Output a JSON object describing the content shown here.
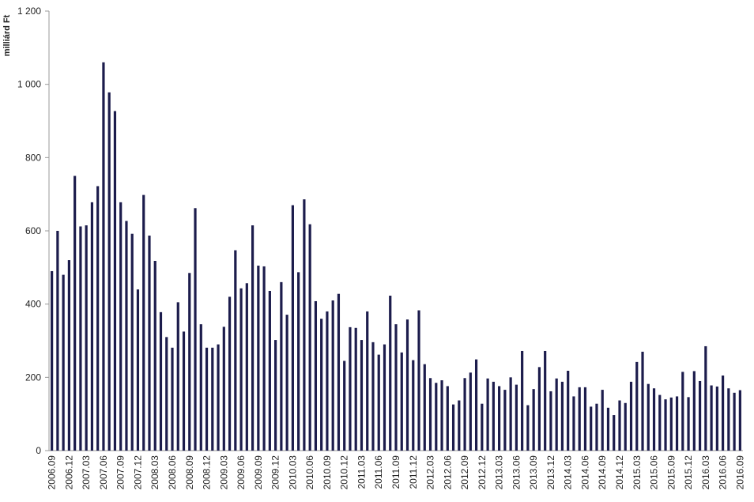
{
  "chart_data": {
    "type": "bar",
    "y_label": "milliárd Ft",
    "color": "#1c1c4c",
    "ylim": [
      0,
      1200
    ],
    "yticks": [
      0,
      200,
      400,
      600,
      800,
      {
        "value": 1000,
        "label": "1 000"
      },
      {
        "value": 1200,
        "label": "1 200"
      }
    ],
    "grid": false,
    "categories": [
      "2006.09",
      null,
      null,
      "2006.12",
      null,
      null,
      "2007.03",
      null,
      null,
      "2007.06",
      null,
      null,
      "2007.09",
      null,
      null,
      "2007.12",
      null,
      null,
      "2008.03",
      null,
      null,
      "2008.06",
      null,
      null,
      "2008.09",
      null,
      null,
      "2008.12",
      null,
      null,
      "2009.03",
      null,
      null,
      "2009.06",
      null,
      null,
      "2009.09",
      null,
      null,
      "2009.12",
      null,
      null,
      "2010.03",
      null,
      null,
      "2010.06",
      null,
      null,
      "2010.09",
      null,
      null,
      "2010.12",
      null,
      null,
      "2011.03",
      null,
      null,
      "2011.06",
      null,
      null,
      "2011.09",
      null,
      null,
      "2011.12",
      null,
      null,
      "2012.03",
      null,
      null,
      "2012.06",
      null,
      null,
      "2012.09",
      null,
      null,
      "2012.12",
      null,
      null,
      "2013.03",
      null,
      null,
      "2013.06",
      null,
      null,
      "2013.09",
      null,
      null,
      "2013.12",
      null,
      null,
      "2014.03",
      null,
      null,
      "2014.06",
      null,
      null,
      "2014.09",
      null,
      null,
      "2014.12",
      null,
      null,
      "2015.03",
      null,
      null,
      "2015.06",
      null,
      null,
      "2015.09",
      null,
      null,
      "2015.12",
      null,
      null,
      "2016.03",
      null,
      null,
      "2016.06",
      null,
      null,
      "2016.09"
    ],
    "values": [
      490,
      600,
      480,
      520,
      750,
      612,
      615,
      678,
      722,
      1060,
      978,
      927,
      678,
      627,
      592,
      440,
      698,
      587,
      518,
      378,
      310,
      281,
      405,
      325,
      485,
      662,
      345,
      281,
      281,
      290,
      338,
      420,
      547,
      443,
      457,
      615,
      505,
      503,
      436,
      302,
      460,
      371,
      670,
      487,
      686,
      618,
      408,
      360,
      380,
      410,
      428,
      245,
      337,
      335,
      302,
      380,
      296,
      262,
      290,
      423,
      345,
      268,
      358,
      247,
      383,
      236,
      198,
      185,
      192,
      176,
      126,
      137,
      198,
      213,
      249,
      128,
      197,
      188,
      176,
      166,
      200,
      180,
      272,
      124,
      168,
      228,
      272,
      162,
      197,
      188,
      218,
      148,
      173,
      173,
      120,
      128,
      166,
      117,
      97,
      137,
      130,
      188,
      242,
      270,
      182,
      170,
      152,
      140,
      145,
      148,
      215,
      146,
      217,
      190,
      285,
      178,
      175,
      205,
      170,
      158,
      165
    ]
  }
}
